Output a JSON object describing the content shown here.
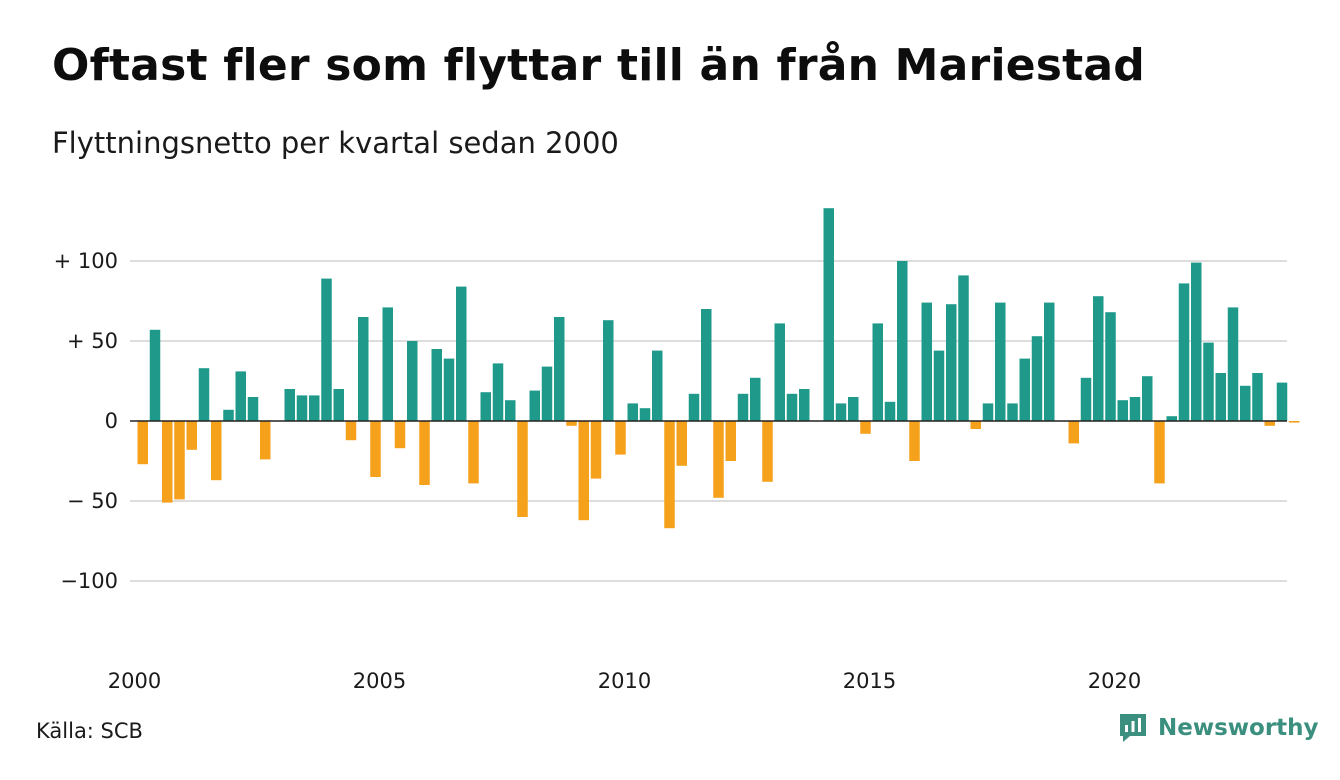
{
  "title": "Oftast fler som flyttar till än från Mariestad",
  "subtitle": "Flyttningsnetto per kvartal sedan 2000",
  "source": "Källa: SCB",
  "brand": "Newsworthy",
  "colors": {
    "positive": "#1f9a8a",
    "negative": "#f5a11c",
    "grid": "#dddddd",
    "brand": "#3a8f7e"
  },
  "chart_data": {
    "type": "bar",
    "title": "Oftast fler som flyttar till än från Mariestad",
    "subtitle": "Flyttningsnetto per kvartal sedan 2000",
    "xlabel": "",
    "ylabel": "",
    "ylim": [
      -140,
      140
    ],
    "yticks": [
      100,
      50,
      0,
      -50,
      -100
    ],
    "ytick_labels": [
      "+ 100",
      "+  50",
      "0",
      "− 50",
      "−100"
    ],
    "xticks": [
      "2000",
      "2005",
      "2010",
      "2015",
      "2020"
    ],
    "grid": true,
    "legend": "none",
    "start_year": 2000,
    "values": [
      -27,
      57,
      -51,
      -49,
      -18,
      33,
      -37,
      7,
      31,
      15,
      -24,
      0,
      20,
      16,
      16,
      89,
      20,
      -12,
      65,
      -35,
      71,
      -17,
      50,
      -40,
      45,
      39,
      84,
      -39,
      18,
      36,
      13,
      -60,
      19,
      34,
      65,
      -3,
      -62,
      -36,
      63,
      -21,
      11,
      8,
      44,
      -67,
      -28,
      17,
      70,
      -48,
      -25,
      17,
      27,
      -38,
      61,
      17,
      20,
      0,
      133,
      11,
      15,
      -8,
      61,
      12,
      100,
      -25,
      74,
      44,
      73,
      91,
      -5,
      11,
      74,
      11,
      39,
      53,
      74,
      0,
      -14,
      27,
      78,
      68,
      13,
      15,
      28,
      -39,
      3,
      86,
      99,
      49,
      30,
      71,
      22,
      30,
      -3,
      24,
      -1
    ]
  }
}
